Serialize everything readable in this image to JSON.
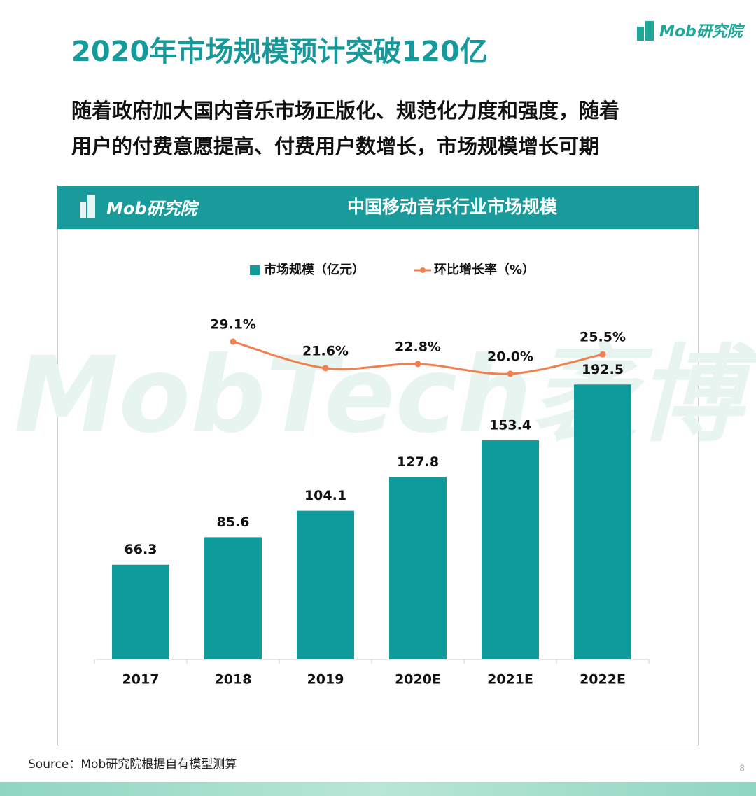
{
  "title": "2020年市场规模预计突破120亿",
  "subtitle": [
    "随着政府加大国内音乐市场正版化、规范化力度和强度，随着",
    "用户的付费意愿提高、付费用户数增长，市场规模增长可期"
  ],
  "logo": "Mob研究院",
  "watermark": "MobTech袤博",
  "source": "Source：Mob研究院根据自有模型测算",
  "page_number": "8",
  "chart_data": {
    "type": "bar-line",
    "title": "中国移动音乐行业市场规模",
    "logo": "Mob研究院",
    "categories": [
      "2017",
      "2018",
      "2019",
      "2020E",
      "2021E",
      "2022E"
    ],
    "series": [
      {
        "name": "市场规模（亿元）",
        "type": "bar",
        "color": "#0f9b9b",
        "values": [
          66.3,
          85.6,
          104.1,
          127.8,
          153.4,
          192.5
        ]
      },
      {
        "name": "环比增长率（%）",
        "type": "line",
        "axis": "y2",
        "color": "#ef8150",
        "values": [
          null,
          29.1,
          21.6,
          22.8,
          20.0,
          25.5
        ],
        "value_labels": [
          null,
          "29.1%",
          "21.6%",
          "22.8%",
          "20.0%",
          "25.5%"
        ]
      }
    ]
  }
}
